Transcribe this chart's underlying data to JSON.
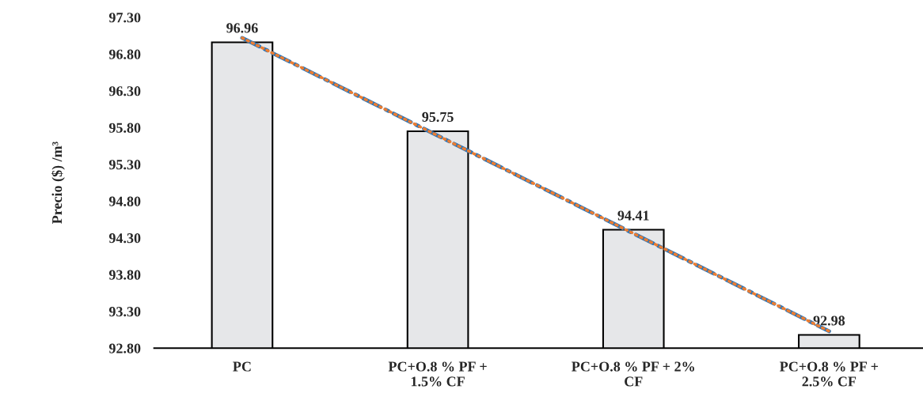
{
  "chart_data": {
    "type": "bar",
    "ylabel": "Precio ($) /m³",
    "categories": [
      "PC",
      "PC+O.8 % PF +\n1.5% CF",
      "PC+O.8 % PF + 2%\nCF",
      "PC+O.8 % PF +\n2.5% CF"
    ],
    "series": [
      {
        "color": "#e6e7e9",
        "values": [
          96.96,
          95.75,
          94.41,
          92.98
        ],
        "value_labels": [
          "96.96",
          "95.75",
          "94.41",
          "92.98"
        ]
      },
      {
        "type": "line",
        "color": "#ed7d31",
        "line_style": "dotted",
        "values": [
          97.02,
          95.69,
          94.36,
          93.03
        ]
      },
      {
        "type": "line",
        "color": "#2e75b6",
        "line_style": "dashed",
        "values": [
          97.02,
          95.69,
          94.36,
          93.03
        ]
      }
    ],
    "ylim": [
      92.8,
      97.3
    ],
    "yticks": [
      {
        "value": 92.8,
        "label": "92.80"
      },
      {
        "value": 93.3,
        "label": "93.30"
      },
      {
        "value": 93.8,
        "label": "93.80"
      },
      {
        "value": 94.3,
        "label": "94.30"
      },
      {
        "value": 94.8,
        "label": "94.80"
      },
      {
        "value": 95.3,
        "label": "95.30"
      },
      {
        "value": 95.8,
        "label": "95.80"
      },
      {
        "value": 96.3,
        "label": "96.30"
      },
      {
        "value": 96.8,
        "label": "96.80"
      },
      {
        "value": 97.3,
        "label": "97.30"
      }
    ],
    "grid": false,
    "legend": false
  }
}
